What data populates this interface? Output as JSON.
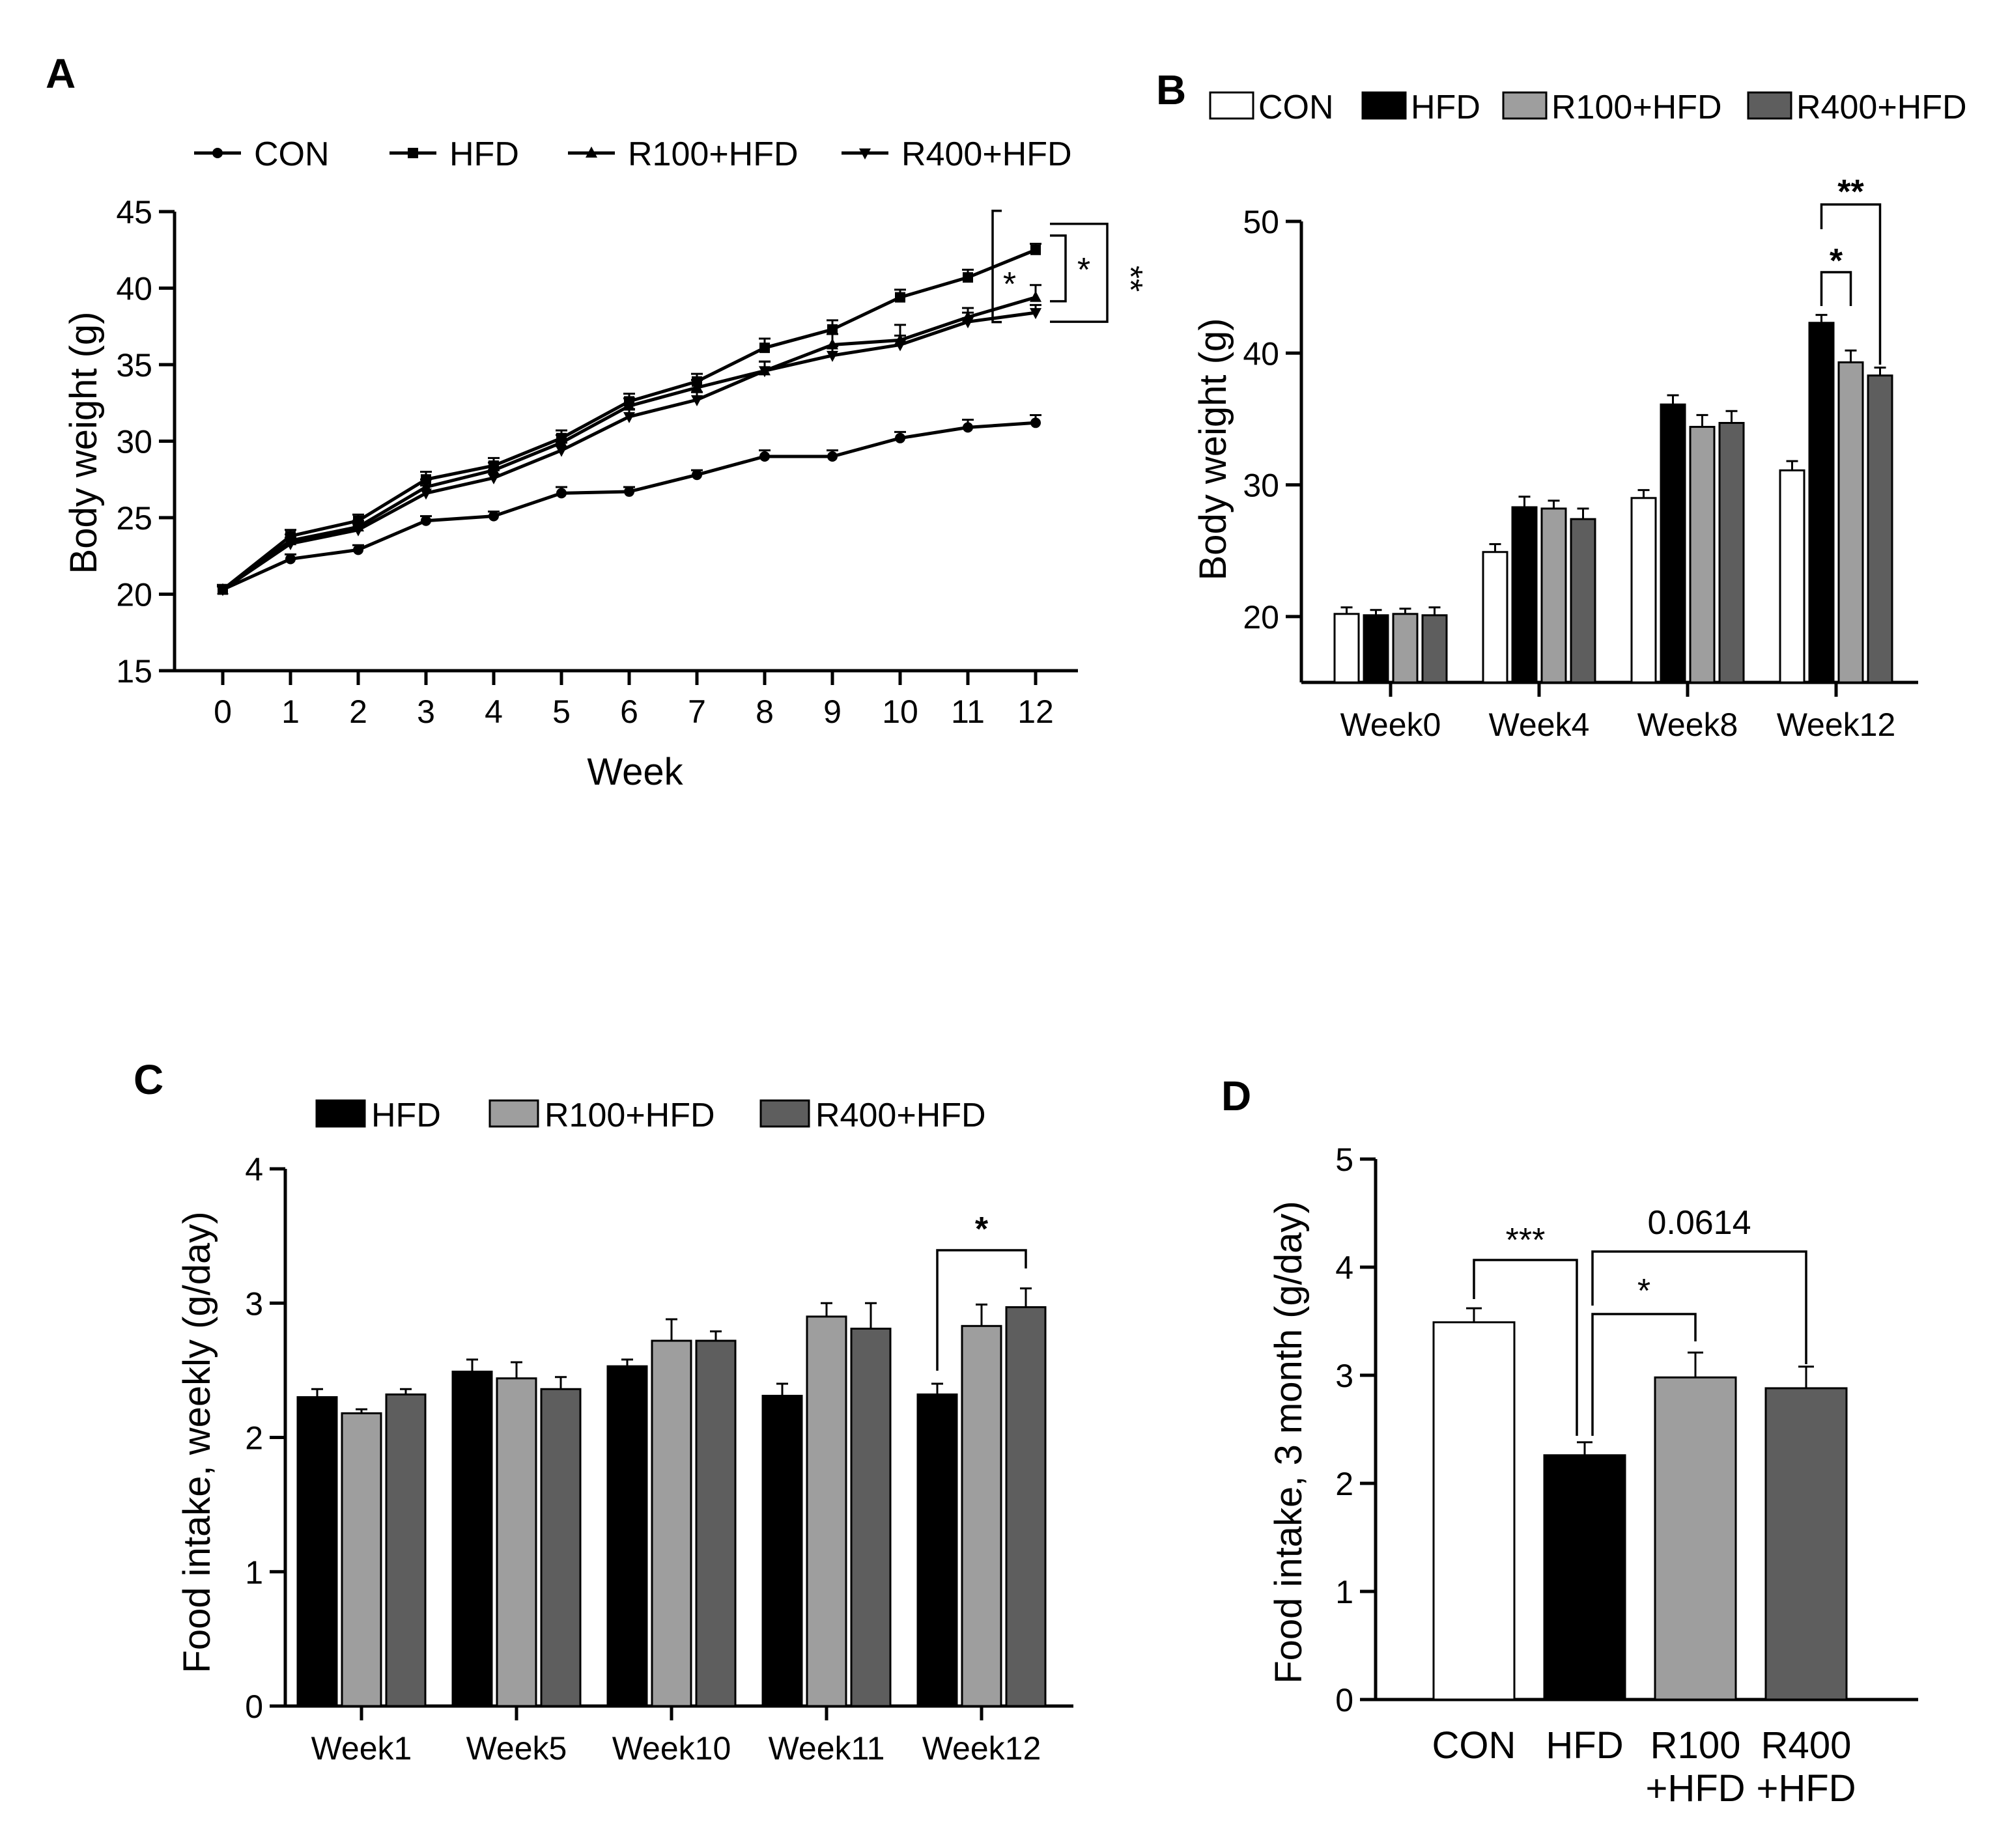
{
  "panels": {
    "A": {
      "letter": "A"
    },
    "B": {
      "letter": "B"
    },
    "C": {
      "letter": "C"
    },
    "D": {
      "letter": "D"
    }
  },
  "colors": {
    "CON": "#ffffff",
    "HFD": "#000000",
    "R100+HFD": "#9e9e9e",
    "R400+HFD": "#5e5e5e"
  },
  "chart_data": [
    {
      "id": "A",
      "type": "line",
      "xlabel": "Week",
      "ylabel": "Body weight (g)",
      "ylim": [
        15,
        45
      ],
      "yticks": [
        15,
        20,
        25,
        30,
        35,
        40,
        45
      ],
      "x": [
        0,
        1,
        2,
        3,
        4,
        5,
        6,
        7,
        8,
        9,
        10,
        11,
        12
      ],
      "legend_position": "top",
      "series": [
        {
          "name": "CON",
          "marker": "circle",
          "values": [
            20.3,
            22.3,
            22.9,
            24.8,
            25.1,
            26.6,
            26.7,
            27.8,
            29.0,
            29.0,
            30.2,
            30.9,
            31.2
          ],
          "errors": [
            0.2,
            0.3,
            0.3,
            0.3,
            0.3,
            0.4,
            0.3,
            0.3,
            0.4,
            0.4,
            0.4,
            0.5,
            0.5
          ]
        },
        {
          "name": "HFD",
          "marker": "square",
          "values": [
            20.3,
            23.8,
            24.8,
            27.5,
            28.4,
            30.2,
            32.6,
            33.9,
            36.1,
            37.3,
            39.4,
            40.7,
            42.5
          ],
          "errors": [
            0.3,
            0.4,
            0.4,
            0.5,
            0.5,
            0.5,
            0.5,
            0.5,
            0.6,
            0.6,
            0.5,
            0.5,
            0.4
          ]
        },
        {
          "name": "R100+HFD",
          "marker": "triangle-up",
          "values": [
            20.3,
            23.5,
            24.4,
            27.0,
            28.1,
            29.9,
            32.3,
            33.5,
            34.6,
            36.3,
            36.6,
            38.1,
            39.4
          ],
          "errors": [
            0.3,
            0.4,
            0.4,
            0.5,
            0.5,
            0.5,
            0.5,
            0.5,
            0.6,
            0.7,
            1.0,
            0.6,
            0.8
          ]
        },
        {
          "name": "R400+HFD",
          "marker": "triangle-down",
          "values": [
            20.3,
            23.3,
            24.2,
            26.6,
            27.6,
            29.4,
            31.6,
            32.7,
            34.6,
            35.6,
            36.3,
            37.8,
            38.4
          ],
          "errors": [
            0.3,
            0.4,
            0.4,
            0.5,
            0.5,
            0.5,
            0.5,
            0.5,
            0.6,
            0.6,
            0.6,
            0.6,
            0.5
          ]
        }
      ],
      "annotations": [
        {
          "text": "*",
          "between": [
            "HFD",
            "R100+HFD"
          ],
          "x": 12
        },
        {
          "text": "*",
          "between": [
            "HFD",
            "R400+HFD"
          ],
          "x": 12
        },
        {
          "text": "**",
          "between": [
            "HFD",
            "R400+HFD"
          ],
          "x": 12
        }
      ]
    },
    {
      "id": "B",
      "type": "bar",
      "xlabel": "",
      "ylabel": "Body weight (g)",
      "ylim": [
        15,
        50
      ],
      "yticks": [
        20,
        30,
        40,
        50
      ],
      "categories": [
        "Week0",
        "Week4",
        "Week8",
        "Week12"
      ],
      "legend_position": "top",
      "series": [
        {
          "name": "CON",
          "values": [
            20.2,
            24.9,
            29.0,
            31.1
          ],
          "errors": [
            0.5,
            0.6,
            0.6,
            0.7
          ]
        },
        {
          "name": "HFD",
          "values": [
            20.1,
            28.3,
            36.1,
            42.3
          ],
          "errors": [
            0.4,
            0.8,
            0.7,
            0.6
          ]
        },
        {
          "name": "R100+HFD",
          "values": [
            20.2,
            28.2,
            34.4,
            39.3
          ],
          "errors": [
            0.4,
            0.6,
            0.9,
            0.9
          ]
        },
        {
          "name": "R400+HFD",
          "values": [
            20.1,
            27.4,
            34.7,
            38.3
          ],
          "errors": [
            0.6,
            0.8,
            0.9,
            0.6
          ]
        }
      ],
      "annotations": [
        {
          "text": "*",
          "category": "Week12",
          "between": [
            "HFD",
            "R100+HFD"
          ]
        },
        {
          "text": "**",
          "category": "Week12",
          "between": [
            "HFD",
            "R400+HFD"
          ]
        }
      ]
    },
    {
      "id": "C",
      "type": "bar",
      "xlabel": "",
      "ylabel": "Food intake, weekly (g/day)",
      "ylim": [
        0,
        4
      ],
      "yticks": [
        0,
        1,
        2,
        3,
        4
      ],
      "categories": [
        "Week1",
        "Week5",
        "Week10",
        "Week11",
        "Week12"
      ],
      "legend_position": "top",
      "series": [
        {
          "name": "HFD",
          "values": [
            2.3,
            2.49,
            2.53,
            2.31,
            2.32
          ],
          "errors": [
            0.06,
            0.09,
            0.05,
            0.09,
            0.08
          ]
        },
        {
          "name": "R100+HFD",
          "values": [
            2.18,
            2.44,
            2.72,
            2.9,
            2.83
          ],
          "errors": [
            0.03,
            0.12,
            0.16,
            0.1,
            0.16
          ]
        },
        {
          "name": "R400+HFD",
          "values": [
            2.32,
            2.36,
            2.72,
            2.81,
            2.97
          ],
          "errors": [
            0.04,
            0.09,
            0.07,
            0.19,
            0.14
          ]
        }
      ],
      "annotations": [
        {
          "text": "*",
          "category": "Week12",
          "between": [
            "HFD",
            "R400+HFD"
          ]
        }
      ]
    },
    {
      "id": "D",
      "type": "bar",
      "xlabel": "",
      "ylabel": "Food intake, 3 month (g/day)",
      "ylim": [
        0,
        5
      ],
      "yticks": [
        0,
        1,
        2,
        3,
        4,
        5
      ],
      "categories": [
        "CON",
        "HFD",
        "R100\n+HFD",
        "R400\n+HFD"
      ],
      "values": [
        3.49,
        2.26,
        2.98,
        2.88
      ],
      "errors": [
        0.13,
        0.12,
        0.23,
        0.2
      ],
      "annotations": [
        {
          "text": "***",
          "between": [
            "CON",
            "HFD"
          ]
        },
        {
          "text": "*",
          "between": [
            "HFD",
            "R100\n+HFD"
          ]
        },
        {
          "text": "0.0614",
          "between": [
            "HFD",
            "R400\n+HFD"
          ]
        }
      ]
    }
  ]
}
